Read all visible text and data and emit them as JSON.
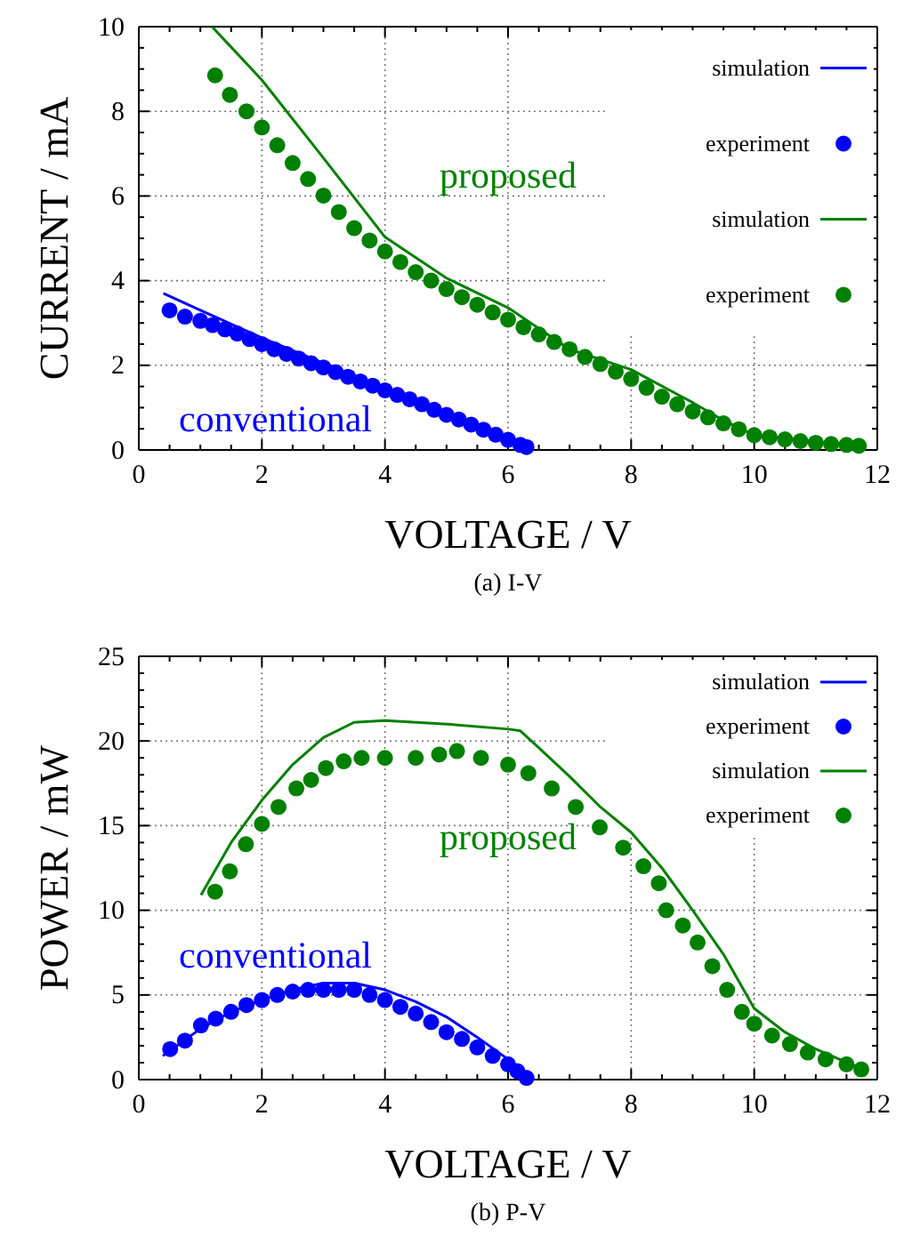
{
  "chart_data": [
    {
      "type": "line",
      "title": "(a) I-V",
      "xlabel": "VOLTAGE / V",
      "ylabel": "CURRENT / mA",
      "xlim": [
        0,
        12
      ],
      "ylim": [
        0,
        10
      ],
      "xticks": [
        0,
        {
          "value": 0.5,
          "label": null
        },
        {
          "value": 1,
          "label": null
        },
        {
          "value": 1.5,
          "label": null
        },
        2,
        {
          "value": 2.5,
          "label": null
        },
        {
          "value": 3,
          "label": null
        },
        {
          "value": 3.5,
          "label": null
        },
        4,
        {
          "value": 4.5,
          "label": null
        },
        {
          "value": 5,
          "label": null
        },
        {
          "value": 5.5,
          "label": null
        },
        6,
        {
          "value": 6.5,
          "label": null
        },
        {
          "value": 7,
          "label": null
        },
        {
          "value": 7.5,
          "label": null
        },
        8,
        {
          "value": 8.5,
          "label": null
        },
        {
          "value": 9,
          "label": null
        },
        {
          "value": 9.5,
          "label": null
        },
        10,
        {
          "value": 10.5,
          "label": null
        },
        {
          "value": 11,
          "label": null
        },
        {
          "value": 11.5,
          "label": null
        },
        12
      ],
      "yticks": [
        0,
        {
          "value": 0.5,
          "label": null
        },
        {
          "value": 1,
          "label": null
        },
        {
          "value": 1.5,
          "label": null
        },
        2,
        {
          "value": 2.5,
          "label": null
        },
        {
          "value": 3,
          "label": null
        },
        {
          "value": 3.5,
          "label": null
        },
        4,
        {
          "value": 4.5,
          "label": null
        },
        {
          "value": 5,
          "label": null
        },
        {
          "value": 5.5,
          "label": null
        },
        6,
        {
          "value": 6.5,
          "label": null
        },
        {
          "value": 7,
          "label": null
        },
        {
          "value": 7.5,
          "label": null
        },
        8,
        {
          "value": 8.5,
          "label": null
        },
        {
          "value": 9,
          "label": null
        },
        {
          "value": 9.5,
          "label": null
        },
        10
      ],
      "grid": true,
      "legend": "top right",
      "annotations": [
        "conventional",
        "proposed"
      ],
      "series": [
        {
          "name": "simulation",
          "type": "line",
          "color": "#0000ff",
          "x": [
            0.4,
            1,
            2,
            3,
            4,
            5,
            6,
            6.3
          ],
          "values": [
            3.7,
            3.3,
            2.65,
            2.05,
            1.45,
            0.85,
            0.25,
            0.05
          ]
        },
        {
          "name": "experiment",
          "type": "scatter",
          "color": "#0000ff",
          "x": [
            0.5,
            0.75,
            1.0,
            1.2,
            1.4,
            1.6,
            1.8,
            2.0,
            2.2,
            2.4,
            2.6,
            2.8,
            3.0,
            3.2,
            3.4,
            3.6,
            3.8,
            4.0,
            4.2,
            4.4,
            4.6,
            4.8,
            5.0,
            5.2,
            5.4,
            5.6,
            5.8,
            6.0,
            6.2,
            6.3
          ],
          "values": [
            3.3,
            3.15,
            3.05,
            2.95,
            2.85,
            2.75,
            2.62,
            2.5,
            2.38,
            2.27,
            2.16,
            2.05,
            1.95,
            1.84,
            1.73,
            1.62,
            1.52,
            1.41,
            1.3,
            1.2,
            1.08,
            0.95,
            0.83,
            0.72,
            0.6,
            0.48,
            0.36,
            0.24,
            0.12,
            0.07
          ]
        },
        {
          "name": "simulation",
          "type": "line",
          "color": "#008000",
          "x": [
            1.19,
            2,
            3,
            4,
            5,
            6,
            7,
            8,
            9,
            9.5,
            10,
            11,
            11.7
          ],
          "values": [
            10,
            8.74,
            6.9,
            5.03,
            4.06,
            3.36,
            2.38,
            1.9,
            1.12,
            0.7,
            0.35,
            0.2,
            0.1
          ]
        },
        {
          "name": "experiment",
          "type": "scatter",
          "color": "#008000",
          "x": [
            1.24,
            1.48,
            1.75,
            2,
            2.25,
            2.5,
            2.75,
            3,
            3.25,
            3.5,
            3.75,
            4,
            4.25,
            4.5,
            4.75,
            5,
            5.25,
            5.5,
            5.75,
            6,
            6.25,
            6.5,
            6.75,
            7,
            7.25,
            7.5,
            7.75,
            8,
            8.25,
            8.5,
            8.75,
            9,
            9.25,
            9.5,
            9.75,
            10,
            10.25,
            10.5,
            10.75,
            11,
            11.25,
            11.5,
            11.7
          ],
          "values": [
            8.85,
            8.39,
            8.0,
            7.62,
            7.2,
            6.78,
            6.4,
            6.01,
            5.62,
            5.24,
            4.95,
            4.69,
            4.44,
            4.2,
            4.0,
            3.8,
            3.61,
            3.43,
            3.25,
            3.08,
            2.9,
            2.73,
            2.55,
            2.38,
            2.2,
            2.03,
            1.85,
            1.68,
            1.47,
            1.26,
            1.08,
            0.91,
            0.77,
            0.63,
            0.49,
            0.35,
            0.3,
            0.25,
            0.21,
            0.17,
            0.14,
            0.12,
            0.1
          ]
        }
      ]
    },
    {
      "type": "line",
      "title": "(b) P-V",
      "xlabel": "VOLTAGE / V",
      "ylabel": "POWER / mW",
      "xlim": [
        0,
        12
      ],
      "ylim": [
        0,
        25
      ],
      "xticks": [
        0,
        {
          "value": 0.5,
          "label": null
        },
        {
          "value": 1,
          "label": null
        },
        {
          "value": 1.5,
          "label": null
        },
        2,
        {
          "value": 2.5,
          "label": null
        },
        {
          "value": 3,
          "label": null
        },
        {
          "value": 3.5,
          "label": null
        },
        4,
        {
          "value": 4.5,
          "label": null
        },
        {
          "value": 5,
          "label": null
        },
        {
          "value": 5.5,
          "label": null
        },
        6,
        {
          "value": 6.5,
          "label": null
        },
        {
          "value": 7,
          "label": null
        },
        {
          "value": 7.5,
          "label": null
        },
        8,
        {
          "value": 8.5,
          "label": null
        },
        {
          "value": 9,
          "label": null
        },
        {
          "value": 9.5,
          "label": null
        },
        10,
        {
          "value": 10.5,
          "label": null
        },
        {
          "value": 11,
          "label": null
        },
        {
          "value": 11.5,
          "label": null
        },
        12
      ],
      "yticks": [
        0,
        {
          "value": 1,
          "label": null
        },
        {
          "value": 2,
          "label": null
        },
        {
          "value": 3,
          "label": null
        },
        {
          "value": 4,
          "label": null
        },
        5,
        {
          "value": 6,
          "label": null
        },
        {
          "value": 7,
          "label": null
        },
        {
          "value": 8,
          "label": null
        },
        {
          "value": 9,
          "label": null
        },
        10,
        {
          "value": 11,
          "label": null
        },
        {
          "value": 12,
          "label": null
        },
        {
          "value": 13,
          "label": null
        },
        {
          "value": 14,
          "label": null
        },
        15,
        {
          "value": 16,
          "label": null
        },
        {
          "value": 17,
          "label": null
        },
        {
          "value": 18,
          "label": null
        },
        {
          "value": 19,
          "label": null
        },
        20,
        {
          "value": 21,
          "label": null
        },
        {
          "value": 22,
          "label": null
        },
        {
          "value": 23,
          "label": null
        },
        {
          "value": 24,
          "label": null
        },
        25
      ],
      "grid": true,
      "legend": "top right",
      "annotations": [
        "conventional",
        "proposed"
      ],
      "series": [
        {
          "name": "simulation",
          "type": "line",
          "color": "#0000ff",
          "x": [
            0.39,
            1,
            1.5,
            2,
            2.5,
            3,
            3.5,
            4,
            4.5,
            5,
            5.5,
            6,
            6.3
          ],
          "values": [
            1.4,
            3.0,
            4.0,
            4.7,
            5.3,
            5.7,
            5.7,
            5.3,
            4.6,
            3.7,
            2.5,
            1.2,
            0.2
          ]
        },
        {
          "name": "experiment",
          "type": "scatter",
          "color": "#0000ff",
          "x": [
            0.51,
            0.75,
            1.01,
            1.25,
            1.5,
            1.75,
            2,
            2.25,
            2.5,
            2.75,
            3,
            3.25,
            3.5,
            3.75,
            4,
            4.25,
            4.5,
            4.75,
            5,
            5.25,
            5.5,
            5.75,
            6,
            6.15,
            6.3
          ],
          "values": [
            1.8,
            2.3,
            3.2,
            3.6,
            4.0,
            4.4,
            4.7,
            5.0,
            5.2,
            5.3,
            5.3,
            5.3,
            5.3,
            5.0,
            4.7,
            4.3,
            3.9,
            3.4,
            2.8,
            2.4,
            1.9,
            1.4,
            0.9,
            0.5,
            0.1
          ]
        },
        {
          "name": "simulation",
          "type": "line",
          "color": "#008000",
          "x": [
            1.01,
            1.5,
            2,
            2.5,
            3,
            3.5,
            4,
            5,
            6,
            6.2,
            6.5,
            7,
            7.5,
            8,
            8.5,
            9,
            9.5,
            10,
            10.5,
            11,
            11.7
          ],
          "values": [
            10.9,
            14.0,
            16.5,
            18.6,
            20.2,
            21.1,
            21.2,
            21.0,
            20.7,
            20.6,
            19.6,
            17.9,
            16.1,
            14.6,
            12.5,
            10.0,
            7.4,
            4.2,
            2.8,
            1.8,
            0.7
          ]
        },
        {
          "name": "experiment",
          "type": "scatter",
          "color": "#008000",
          "x": [
            1.24,
            1.48,
            1.74,
            2,
            2.27,
            2.56,
            2.8,
            3.04,
            3.33,
            3.62,
            4,
            4.5,
            4.88,
            5.17,
            5.56,
            6,
            6.33,
            6.71,
            7.1,
            7.49,
            7.87,
            8.2,
            8.45,
            8.57,
            8.84,
            9.08,
            9.32,
            9.56,
            9.8,
            10,
            10.29,
            10.58,
            10.87,
            11.16,
            11.5,
            11.74
          ],
          "values": [
            11.1,
            12.3,
            13.9,
            15.1,
            16.1,
            17.2,
            17.7,
            18.4,
            18.8,
            19.0,
            19.0,
            19.0,
            19.2,
            19.4,
            19.0,
            18.6,
            18.1,
            17.2,
            16.1,
            14.9,
            13.7,
            12.6,
            11.6,
            10.0,
            9.1,
            8.1,
            6.7,
            5.3,
            4.0,
            3.3,
            2.6,
            2.1,
            1.6,
            1.2,
            0.9,
            0.6
          ]
        }
      ]
    }
  ]
}
